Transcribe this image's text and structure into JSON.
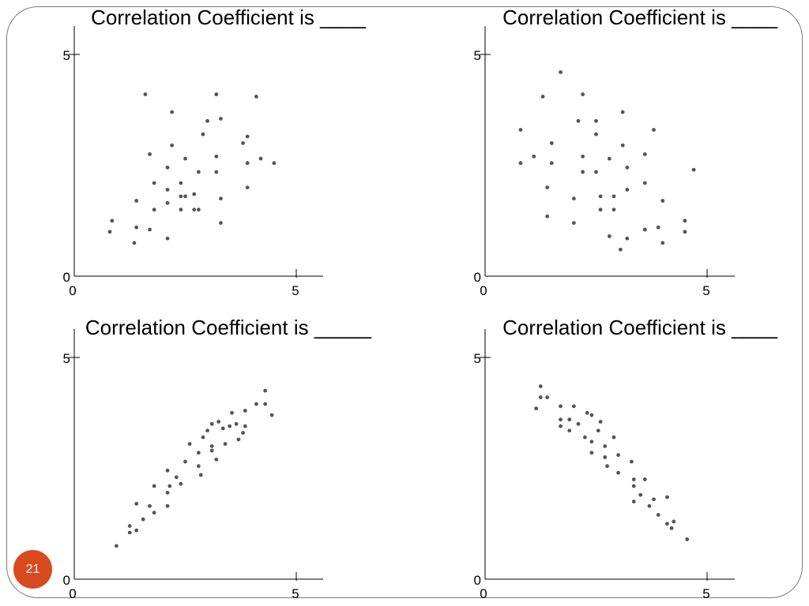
{
  "slide": {
    "page_number": "21",
    "badge_color": "#d94a1e",
    "point_color": "#555555"
  },
  "chart_data": [
    {
      "type": "scatter",
      "title": "Correlation Coefficient is ____",
      "xlim": [
        0,
        5
      ],
      "ylim": [
        0,
        5
      ],
      "xticks": [
        "0",
        "5"
      ],
      "yticks": [
        "0",
        "5"
      ],
      "points": [
        [
          1.6,
          4.1
        ],
        [
          3.2,
          4.1
        ],
        [
          4.1,
          4.05
        ],
        [
          2.2,
          3.7
        ],
        [
          3.0,
          3.5
        ],
        [
          3.3,
          3.55
        ],
        [
          2.9,
          3.2
        ],
        [
          3.9,
          3.15
        ],
        [
          2.2,
          2.95
        ],
        [
          3.8,
          3.0
        ],
        [
          1.7,
          2.75
        ],
        [
          2.5,
          2.65
        ],
        [
          3.2,
          2.7
        ],
        [
          4.2,
          2.65
        ],
        [
          4.5,
          2.55
        ],
        [
          3.9,
          2.55
        ],
        [
          2.1,
          2.45
        ],
        [
          2.8,
          2.35
        ],
        [
          3.2,
          2.35
        ],
        [
          1.8,
          2.1
        ],
        [
          2.4,
          2.1
        ],
        [
          2.1,
          1.95
        ],
        [
          3.9,
          2.0
        ],
        [
          2.7,
          1.85
        ],
        [
          2.4,
          1.8
        ],
        [
          2.5,
          1.8
        ],
        [
          1.4,
          1.7
        ],
        [
          2.1,
          1.65
        ],
        [
          3.3,
          1.75
        ],
        [
          1.8,
          1.5
        ],
        [
          2.4,
          1.5
        ],
        [
          2.7,
          1.5
        ],
        [
          2.8,
          1.5
        ],
        [
          0.85,
          1.25
        ],
        [
          1.4,
          1.1
        ],
        [
          1.7,
          1.05
        ],
        [
          0.8,
          1.0
        ],
        [
          2.1,
          0.85
        ],
        [
          3.3,
          1.2
        ],
        [
          1.35,
          0.75
        ]
      ]
    },
    {
      "type": "scatter",
      "title": "Correlation Coefficient is ____",
      "xlim": [
        0,
        5
      ],
      "ylim": [
        0,
        5
      ],
      "xticks": [
        "0",
        "5"
      ],
      "yticks": [
        "0",
        "5"
      ],
      "points": [
        [
          1.7,
          4.6
        ],
        [
          1.3,
          4.05
        ],
        [
          2.2,
          4.1
        ],
        [
          3.1,
          3.7
        ],
        [
          0.8,
          3.3
        ],
        [
          2.1,
          3.5
        ],
        [
          2.5,
          3.5
        ],
        [
          3.8,
          3.3
        ],
        [
          2.5,
          3.2
        ],
        [
          1.5,
          3.0
        ],
        [
          3.1,
          2.95
        ],
        [
          1.1,
          2.7
        ],
        [
          2.2,
          2.7
        ],
        [
          2.8,
          2.65
        ],
        [
          3.6,
          2.75
        ],
        [
          0.8,
          2.55
        ],
        [
          1.5,
          2.55
        ],
        [
          4.7,
          2.4
        ],
        [
          3.2,
          2.45
        ],
        [
          2.2,
          2.35
        ],
        [
          2.5,
          2.35
        ],
        [
          3.6,
          2.1
        ],
        [
          1.4,
          2.0
        ],
        [
          3.2,
          1.95
        ],
        [
          2.6,
          1.8
        ],
        [
          2.9,
          1.8
        ],
        [
          2.0,
          1.75
        ],
        [
          4.0,
          1.7
        ],
        [
          2.6,
          1.5
        ],
        [
          2.9,
          1.5
        ],
        [
          1.4,
          1.35
        ],
        [
          4.5,
          1.25
        ],
        [
          2.0,
          1.2
        ],
        [
          3.6,
          1.05
        ],
        [
          3.9,
          1.1
        ],
        [
          4.5,
          1.0
        ],
        [
          2.8,
          0.9
        ],
        [
          3.2,
          0.85
        ],
        [
          4.0,
          0.75
        ],
        [
          3.05,
          0.6
        ]
      ]
    },
    {
      "type": "scatter",
      "title": "Correlation Coefficient is _____",
      "xlim": [
        0,
        5
      ],
      "ylim": [
        0,
        5
      ],
      "xticks": [
        "0",
        "5"
      ],
      "yticks": [
        "0",
        "5"
      ],
      "points": [
        [
          0.95,
          0.75
        ],
        [
          1.25,
          1.05
        ],
        [
          1.25,
          1.2
        ],
        [
          1.4,
          1.1
        ],
        [
          1.4,
          1.7
        ],
        [
          1.55,
          1.35
        ],
        [
          1.7,
          1.65
        ],
        [
          1.8,
          1.5
        ],
        [
          1.8,
          2.1
        ],
        [
          2.1,
          1.65
        ],
        [
          2.1,
          1.95
        ],
        [
          2.15,
          2.1
        ],
        [
          2.1,
          2.45
        ],
        [
          2.3,
          2.3
        ],
        [
          2.4,
          2.15
        ],
        [
          2.5,
          2.65
        ],
        [
          2.6,
          3.05
        ],
        [
          2.8,
          2.55
        ],
        [
          2.8,
          2.85
        ],
        [
          2.85,
          2.35
        ],
        [
          2.9,
          3.2
        ],
        [
          3.0,
          3.35
        ],
        [
          3.1,
          2.9
        ],
        [
          3.1,
          3.0
        ],
        [
          3.1,
          3.5
        ],
        [
          3.2,
          2.7
        ],
        [
          3.25,
          3.55
        ],
        [
          3.35,
          3.4
        ],
        [
          3.4,
          3.05
        ],
        [
          3.5,
          3.45
        ],
        [
          3.55,
          3.75
        ],
        [
          3.65,
          3.5
        ],
        [
          3.7,
          3.15
        ],
        [
          3.8,
          3.3
        ],
        [
          3.85,
          3.8
        ],
        [
          3.85,
          3.45
        ],
        [
          4.1,
          3.95
        ],
        [
          4.3,
          4.25
        ],
        [
          4.3,
          3.95
        ],
        [
          4.45,
          3.7
        ]
      ]
    },
    {
      "type": "scatter",
      "title": "Correlation Coefficient is ____",
      "xlim": [
        0,
        5
      ],
      "ylim": [
        0,
        5
      ],
      "xticks": [
        "0",
        "5"
      ],
      "yticks": [
        "0",
        "5"
      ],
      "points": [
        [
          1.25,
          4.35
        ],
        [
          1.25,
          4.1
        ],
        [
          1.4,
          4.1
        ],
        [
          1.15,
          3.85
        ],
        [
          1.7,
          3.9
        ],
        [
          2.0,
          3.9
        ],
        [
          1.7,
          3.6
        ],
        [
          1.9,
          3.6
        ],
        [
          2.1,
          3.5
        ],
        [
          1.7,
          3.45
        ],
        [
          2.3,
          3.75
        ],
        [
          2.4,
          3.7
        ],
        [
          2.6,
          3.55
        ],
        [
          2.55,
          3.35
        ],
        [
          2.25,
          3.2
        ],
        [
          1.9,
          3.35
        ],
        [
          2.4,
          3.1
        ],
        [
          2.9,
          3.2
        ],
        [
          2.7,
          3.0
        ],
        [
          2.4,
          2.85
        ],
        [
          2.7,
          2.75
        ],
        [
          3.0,
          2.8
        ],
        [
          2.75,
          2.55
        ],
        [
          3.3,
          2.65
        ],
        [
          3.0,
          2.4
        ],
        [
          3.35,
          2.25
        ],
        [
          3.6,
          2.25
        ],
        [
          3.35,
          2.1
        ],
        [
          3.5,
          1.9
        ],
        [
          3.8,
          1.8
        ],
        [
          4.1,
          1.85
        ],
        [
          3.35,
          1.75
        ],
        [
          3.7,
          1.65
        ],
        [
          3.9,
          1.45
        ],
        [
          4.1,
          1.25
        ],
        [
          4.25,
          1.3
        ],
        [
          4.2,
          1.15
        ],
        [
          4.55,
          0.9
        ]
      ]
    }
  ]
}
